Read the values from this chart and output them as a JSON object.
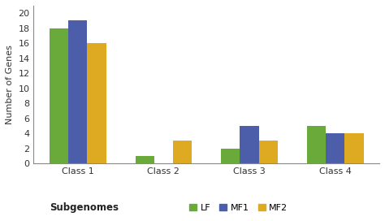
{
  "categories": [
    "Class 1",
    "Class 2",
    "Class 3",
    "Class 4"
  ],
  "series": {
    "LF": [
      18,
      1,
      2,
      5
    ],
    "MF1": [
      19,
      0,
      5,
      4
    ],
    "MF2": [
      16,
      3,
      3,
      4
    ]
  },
  "colors": {
    "LF": "#6aaa3a",
    "MF1": "#4c5eaa",
    "MF2": "#ddaa22"
  },
  "ylabel": "Number of Genes",
  "xlabel": "Subgenomes",
  "ylim": [
    0,
    21
  ],
  "yticks": [
    0,
    2,
    4,
    6,
    8,
    10,
    12,
    14,
    16,
    18,
    20
  ],
  "legend_labels": [
    "LF",
    "MF1",
    "MF2"
  ],
  "bar_width": 0.22,
  "background_color": "#ffffff",
  "axis_fontsize": 8,
  "tick_fontsize": 8,
  "legend_fontsize": 8
}
